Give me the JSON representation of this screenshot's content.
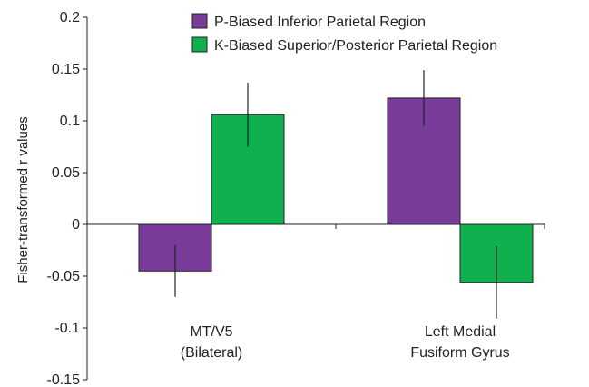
{
  "chart_data": {
    "type": "bar",
    "title": "",
    "xlabel": "",
    "ylabel": "Fisher-transformed r values",
    "ylim": [
      -0.15,
      0.2
    ],
    "yticks": [
      "0.2",
      "0.15",
      "0.1",
      "0.05",
      "0",
      "-0.05",
      "-0.1",
      "-0.15"
    ],
    "categories": [
      [
        "MT/V5",
        "(Bilateral)"
      ],
      [
        "Left Medial",
        "Fusiform Gyrus"
      ]
    ],
    "series": [
      {
        "name": "P-Biased Inferior Parietal Region",
        "color": "#7A3C9A",
        "values": [
          -0.045,
          0.122
        ],
        "error": [
          0.025,
          0.027
        ]
      },
      {
        "name": "K-Biased Superior/Posterior Parietal Region",
        "color": "#11B04F",
        "values": [
          0.106,
          -0.056
        ],
        "error": [
          0.031,
          0.035
        ]
      }
    ],
    "legend_position": "top-right",
    "grid": false
  }
}
